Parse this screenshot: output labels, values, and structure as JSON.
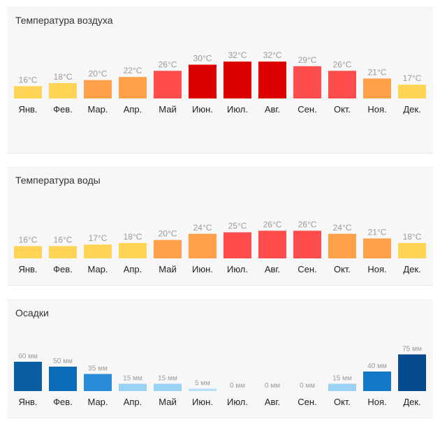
{
  "chart_data": [
    {
      "type": "bar",
      "title": "Температура воздуха",
      "categories": [
        "Янв.",
        "Фев.",
        "Мар.",
        "Апр.",
        "Май",
        "Июн.",
        "Июл.",
        "Авг.",
        "Сен.",
        "Окт.",
        "Ноя.",
        "Дек."
      ],
      "values": [
        16,
        18,
        20,
        22,
        26,
        30,
        32,
        32,
        29,
        26,
        21,
        17
      ],
      "value_labels": [
        "16°C",
        "18°C",
        "20°C",
        "22°C",
        "26°C",
        "30°C",
        "32°C",
        "32°C",
        "29°C",
        "26°C",
        "21°C",
        "17°C"
      ],
      "unit": "°C",
      "colors": [
        "#ffd454",
        "#ffd454",
        "#ffa04a",
        "#ffa04a",
        "#ff4d4d",
        "#dd0000",
        "#dd0000",
        "#dd0000",
        "#ff4d4d",
        "#ff4d4d",
        "#ffa04a",
        "#ffd454"
      ]
    },
    {
      "type": "bar",
      "title": "Температура воды",
      "categories": [
        "Янв.",
        "Фев.",
        "Мар.",
        "Апр.",
        "Май",
        "Июн.",
        "Июл.",
        "Авг.",
        "Сен.",
        "Окт.",
        "Ноя.",
        "Дек."
      ],
      "values": [
        16,
        16,
        17,
        18,
        20,
        24,
        25,
        26,
        26,
        24,
        21,
        18
      ],
      "value_labels": [
        "16°C",
        "16°C",
        "17°C",
        "18°C",
        "20°C",
        "24°C",
        "25°C",
        "26°C",
        "26°C",
        "24°C",
        "21°C",
        "18°C"
      ],
      "unit": "°C",
      "colors": [
        "#ffd454",
        "#ffd454",
        "#ffd454",
        "#ffd454",
        "#ffa04a",
        "#ffa04a",
        "#ff4d4d",
        "#ff4d4d",
        "#ff4d4d",
        "#ffa04a",
        "#ffa04a",
        "#ffd454"
      ]
    },
    {
      "type": "bar",
      "title": "Осадки",
      "categories": [
        "Янв.",
        "Фев.",
        "Мар.",
        "Апр.",
        "Май",
        "Июн.",
        "Июл.",
        "Авг.",
        "Сен.",
        "Окт.",
        "Ноя.",
        "Дек."
      ],
      "values": [
        60,
        50,
        35,
        15,
        15,
        5,
        0,
        0,
        0,
        15,
        40,
        75
      ],
      "value_labels": [
        "60 мм",
        "50 мм",
        "35 мм",
        "15 мм",
        "15 мм",
        "5 мм",
        "0 мм",
        "0 мм",
        "0 мм",
        "15 мм",
        "40 мм",
        "75 мм"
      ],
      "unit": "мм",
      "colors": [
        "#0a5fa0",
        "#0d6cb8",
        "#2a8bd6",
        "#9cd1f6",
        "#9cd1f6",
        "#b9e0fb",
        "#b9e0fb",
        "#b9e0fb",
        "#b9e0fb",
        "#9cd1f6",
        "#1178c8",
        "#064a8e"
      ]
    }
  ]
}
